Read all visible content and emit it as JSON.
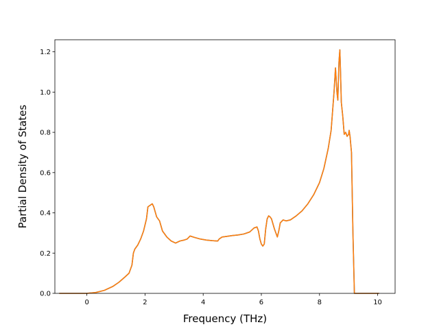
{
  "chart_data": {
    "type": "line",
    "title": "",
    "xlabel": "Frequency (THz)",
    "ylabel": "Partial Density of States",
    "xlim": [
      -1.1,
      10.6
    ],
    "ylim": [
      0.0,
      1.26
    ],
    "xticks": [
      0,
      2,
      4,
      6,
      8,
      10
    ],
    "yticks": [
      0.0,
      0.2,
      0.4,
      0.6,
      0.8,
      1.0,
      1.2
    ],
    "grid": false,
    "legend": "none",
    "series": [
      {
        "color": "#1f77b4",
        "x": [
          -0.95,
          0.0,
          0.3,
          0.6,
          0.9,
          1.1,
          1.3,
          1.45,
          1.55,
          1.6,
          1.65,
          1.75,
          1.85,
          1.95,
          2.05,
          2.1,
          2.15,
          2.25,
          2.3,
          2.4,
          2.5,
          2.6,
          2.75,
          2.9,
          3.05,
          3.2,
          3.35,
          3.45,
          3.55,
          3.7,
          3.9,
          4.1,
          4.3,
          4.5,
          4.55,
          4.65,
          4.8,
          5.0,
          5.2,
          5.4,
          5.6,
          5.75,
          5.85,
          5.9,
          5.95,
          6.0,
          6.05,
          6.1,
          6.15,
          6.2,
          6.25,
          6.3,
          6.35,
          6.45,
          6.55,
          6.6,
          6.65,
          6.75,
          6.85,
          7.0,
          7.2,
          7.4,
          7.6,
          7.8,
          8.0,
          8.15,
          8.3,
          8.4,
          8.5,
          8.55,
          8.6,
          8.63,
          8.67,
          8.7,
          8.72,
          8.75,
          8.8,
          8.85,
          8.9,
          8.95,
          9.0,
          9.02,
          9.05,
          9.1,
          9.15,
          9.2,
          9.25,
          10.05
        ],
        "y": [
          0.0,
          0.0,
          0.004,
          0.015,
          0.035,
          0.055,
          0.08,
          0.1,
          0.14,
          0.2,
          0.22,
          0.24,
          0.27,
          0.31,
          0.37,
          0.43,
          0.435,
          0.445,
          0.43,
          0.38,
          0.36,
          0.31,
          0.28,
          0.26,
          0.25,
          0.26,
          0.265,
          0.27,
          0.285,
          0.278,
          0.27,
          0.265,
          0.262,
          0.26,
          0.27,
          0.28,
          0.283,
          0.287,
          0.29,
          0.295,
          0.305,
          0.325,
          0.33,
          0.31,
          0.27,
          0.245,
          0.235,
          0.245,
          0.32,
          0.37,
          0.385,
          0.38,
          0.37,
          0.32,
          0.28,
          0.31,
          0.35,
          0.365,
          0.36,
          0.365,
          0.385,
          0.41,
          0.445,
          0.49,
          0.55,
          0.62,
          0.72,
          0.81,
          1.0,
          1.12,
          1.0,
          0.96,
          1.15,
          1.21,
          1.12,
          0.95,
          0.88,
          0.79,
          0.8,
          0.78,
          0.79,
          0.81,
          0.78,
          0.7,
          0.3,
          0.0,
          0.0,
          0.0
        ]
      },
      {
        "color": "#ff7f0e",
        "x": [
          -0.95,
          0.0,
          0.3,
          0.6,
          0.9,
          1.1,
          1.3,
          1.45,
          1.55,
          1.6,
          1.65,
          1.75,
          1.85,
          1.95,
          2.05,
          2.1,
          2.15,
          2.25,
          2.3,
          2.4,
          2.5,
          2.6,
          2.75,
          2.9,
          3.05,
          3.2,
          3.35,
          3.45,
          3.55,
          3.7,
          3.9,
          4.1,
          4.3,
          4.5,
          4.55,
          4.65,
          4.8,
          5.0,
          5.2,
          5.4,
          5.6,
          5.75,
          5.85,
          5.9,
          5.95,
          6.0,
          6.05,
          6.1,
          6.15,
          6.2,
          6.25,
          6.3,
          6.35,
          6.45,
          6.55,
          6.6,
          6.65,
          6.75,
          6.85,
          7.0,
          7.2,
          7.4,
          7.6,
          7.8,
          8.0,
          8.15,
          8.3,
          8.4,
          8.5,
          8.55,
          8.6,
          8.63,
          8.67,
          8.7,
          8.72,
          8.75,
          8.8,
          8.85,
          8.9,
          8.95,
          9.0,
          9.02,
          9.05,
          9.1,
          9.15,
          9.2,
          9.25,
          10.05
        ],
        "y": [
          0.0,
          0.0,
          0.004,
          0.015,
          0.035,
          0.055,
          0.08,
          0.1,
          0.14,
          0.2,
          0.22,
          0.24,
          0.27,
          0.31,
          0.37,
          0.43,
          0.435,
          0.445,
          0.43,
          0.38,
          0.36,
          0.31,
          0.28,
          0.26,
          0.25,
          0.26,
          0.265,
          0.27,
          0.285,
          0.278,
          0.27,
          0.265,
          0.262,
          0.26,
          0.27,
          0.28,
          0.283,
          0.287,
          0.29,
          0.295,
          0.305,
          0.325,
          0.33,
          0.31,
          0.27,
          0.245,
          0.235,
          0.245,
          0.32,
          0.37,
          0.385,
          0.38,
          0.37,
          0.32,
          0.28,
          0.31,
          0.35,
          0.365,
          0.36,
          0.365,
          0.385,
          0.41,
          0.445,
          0.49,
          0.55,
          0.62,
          0.72,
          0.81,
          1.0,
          1.12,
          1.0,
          0.96,
          1.15,
          1.21,
          1.12,
          0.95,
          0.88,
          0.79,
          0.8,
          0.78,
          0.79,
          0.81,
          0.78,
          0.7,
          0.3,
          0.0,
          0.0,
          0.0
        ]
      }
    ]
  }
}
